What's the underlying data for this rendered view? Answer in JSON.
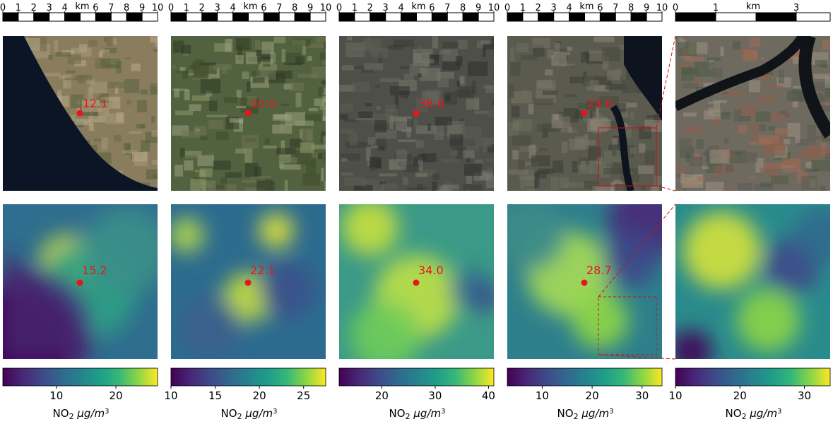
{
  "figure": {
    "km_label": "km",
    "unit_label_main": "NO",
    "unit_label_sub": "2",
    "unit_label_rest": " µg/m",
    "unit_label_exp": "3",
    "marker_color": "#e8161c",
    "zoom_color": "#cc1010"
  },
  "chart_data": [
    {
      "type": "heatmap",
      "panel": 1,
      "scale_bar": {
        "ticks": [
          0,
          1,
          2,
          3,
          4,
          5,
          6,
          7,
          8,
          9,
          10
        ],
        "tick_labels": [
          "0",
          "1",
          "2",
          "3",
          "4",
          "",
          "6",
          "7",
          "8",
          "9",
          "10"
        ],
        "unit": "km"
      },
      "satellite": {
        "scene": "coast",
        "value_label": "12.1"
      },
      "no2_map": {
        "value_label": "15.2",
        "cmap": "viridis"
      },
      "colorbar": {
        "range": [
          1,
          27
        ],
        "ticks": [
          10,
          20
        ],
        "tick_labels": [
          "10",
          "20"
        ],
        "label": "NO2 µg/m3"
      }
    },
    {
      "type": "heatmap",
      "panel": 2,
      "scale_bar": {
        "ticks": [
          0,
          1,
          2,
          3,
          4,
          5,
          6,
          7,
          8,
          9,
          10
        ],
        "tick_labels": [
          "0",
          "1",
          "2",
          "3",
          "4",
          "",
          "6",
          "7",
          "8",
          "9",
          "10"
        ],
        "unit": "km"
      },
      "satellite": {
        "scene": "rural",
        "value_label": "20.0"
      },
      "no2_map": {
        "value_label": "22.1",
        "cmap": "viridis"
      },
      "colorbar": {
        "range": [
          10,
          27.5
        ],
        "ticks": [
          10,
          15,
          20,
          25
        ],
        "tick_labels": [
          "10",
          "15",
          "20",
          "25"
        ],
        "label": "NO2 µg/m3"
      }
    },
    {
      "type": "heatmap",
      "panel": 3,
      "scale_bar": {
        "ticks": [
          0,
          1,
          2,
          3,
          4,
          5,
          6,
          7,
          8,
          9,
          10
        ],
        "tick_labels": [
          "0",
          "1",
          "2",
          "3",
          "4",
          "",
          "6",
          "7",
          "8",
          "9",
          "10"
        ],
        "unit": "km"
      },
      "satellite": {
        "scene": "city",
        "value_label": "38.8"
      },
      "no2_map": {
        "value_label": "34.0",
        "cmap": "viridis"
      },
      "colorbar": {
        "range": [
          12,
          41
        ],
        "ticks": [
          20,
          30,
          40
        ],
        "tick_labels": [
          "20",
          "30",
          "40"
        ],
        "label": "NO2 µg/m3"
      }
    },
    {
      "type": "heatmap",
      "panel": 4,
      "scale_bar": {
        "ticks": [
          0,
          1,
          2,
          3,
          4,
          5,
          6,
          7,
          8,
          9,
          10
        ],
        "tick_labels": [
          "0",
          "1",
          "2",
          "3",
          "4",
          "",
          "6",
          "7",
          "8",
          "9",
          "10"
        ],
        "unit": "km"
      },
      "satellite": {
        "scene": "harbour",
        "value_label": "23.6"
      },
      "no2_map": {
        "value_label": "28.7",
        "cmap": "viridis"
      },
      "colorbar": {
        "range": [
          3,
          34
        ],
        "ticks": [
          10,
          20,
          30
        ],
        "tick_labels": [
          "10",
          "20",
          "30"
        ],
        "label": "NO2 µg/m3"
      }
    },
    {
      "type": "heatmap",
      "panel": 5,
      "scale_bar": {
        "ticks": [
          0,
          1,
          2,
          3,
          4
        ],
        "tick_labels": [
          "0",
          "1",
          "",
          "3",
          ""
        ],
        "unit": "km"
      },
      "satellite": {
        "scene": "zoom",
        "value_label": ""
      },
      "no2_map": {
        "value_label": "",
        "cmap": "viridis"
      },
      "colorbar": {
        "range": [
          10,
          34
        ],
        "ticks": [
          10,
          20,
          30
        ],
        "tick_labels": [
          "10",
          "20",
          "30"
        ],
        "label": "NO2 µg/m3"
      }
    }
  ]
}
